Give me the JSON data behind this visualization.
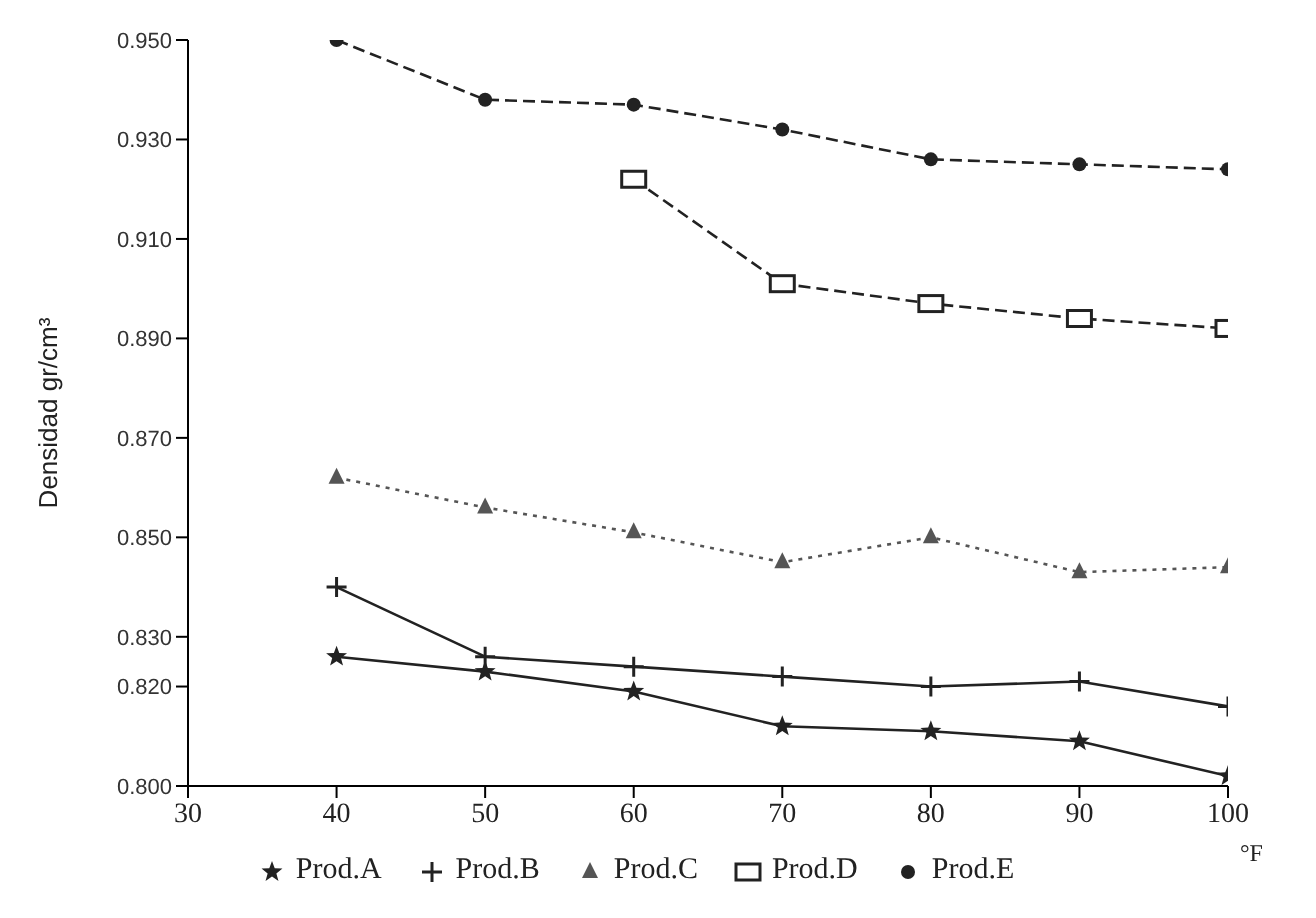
{
  "chart_data": {
    "type": "line",
    "xlabel": "°F",
    "ylabel": "Densidad gr/cm³",
    "x": [
      40,
      50,
      60,
      70,
      80,
      90,
      100
    ],
    "series": [
      {
        "name": "Prod.A",
        "color": "#222222",
        "marker": "star",
        "line_style": "solid",
        "values": [
          0.826,
          0.823,
          0.819,
          0.812,
          0.811,
          0.809,
          0.802
        ]
      },
      {
        "name": "Prod.B",
        "color": "#222222",
        "marker": "cross",
        "line_style": "solid",
        "values": [
          0.84,
          0.826,
          0.824,
          0.822,
          0.82,
          0.821,
          0.816
        ]
      },
      {
        "name": "Prod.C",
        "color": "#555555",
        "marker": "triangle",
        "line_style": "dotted",
        "values": [
          0.862,
          0.856,
          0.851,
          0.845,
          0.85,
          0.843,
          0.844
        ]
      },
      {
        "name": "Prod.D",
        "color": "#222222",
        "marker": "square",
        "line_style": "dashed",
        "values": [
          null,
          null,
          0.922,
          0.901,
          0.897,
          0.894,
          0.892
        ]
      },
      {
        "name": "Prod.E",
        "color": "#222222",
        "marker": "circle",
        "line_style": "dashed",
        "values": [
          0.95,
          0.938,
          0.937,
          0.932,
          0.926,
          0.925,
          0.924
        ]
      }
    ],
    "xlim": [
      30,
      100
    ],
    "xticks": [
      30,
      40,
      50,
      60,
      70,
      80,
      90,
      100
    ],
    "ylim": [
      0.8,
      0.95
    ],
    "yticks": [
      {
        "value": 0.8,
        "label": "0.800"
      },
      {
        "value": 0.82,
        "label": "0.820"
      },
      {
        "value": 0.83,
        "label": "0.830"
      },
      {
        "value": 0.85,
        "label": "0.850"
      },
      {
        "value": 0.87,
        "label": "0.870"
      },
      {
        "value": 0.89,
        "label": "0.890"
      },
      {
        "value": 0.91,
        "label": "0.910"
      },
      {
        "value": 0.93,
        "label": "0.930"
      },
      {
        "value": 0.95,
        "label": "0.950"
      }
    ],
    "grid": false,
    "legend": "bottom"
  }
}
